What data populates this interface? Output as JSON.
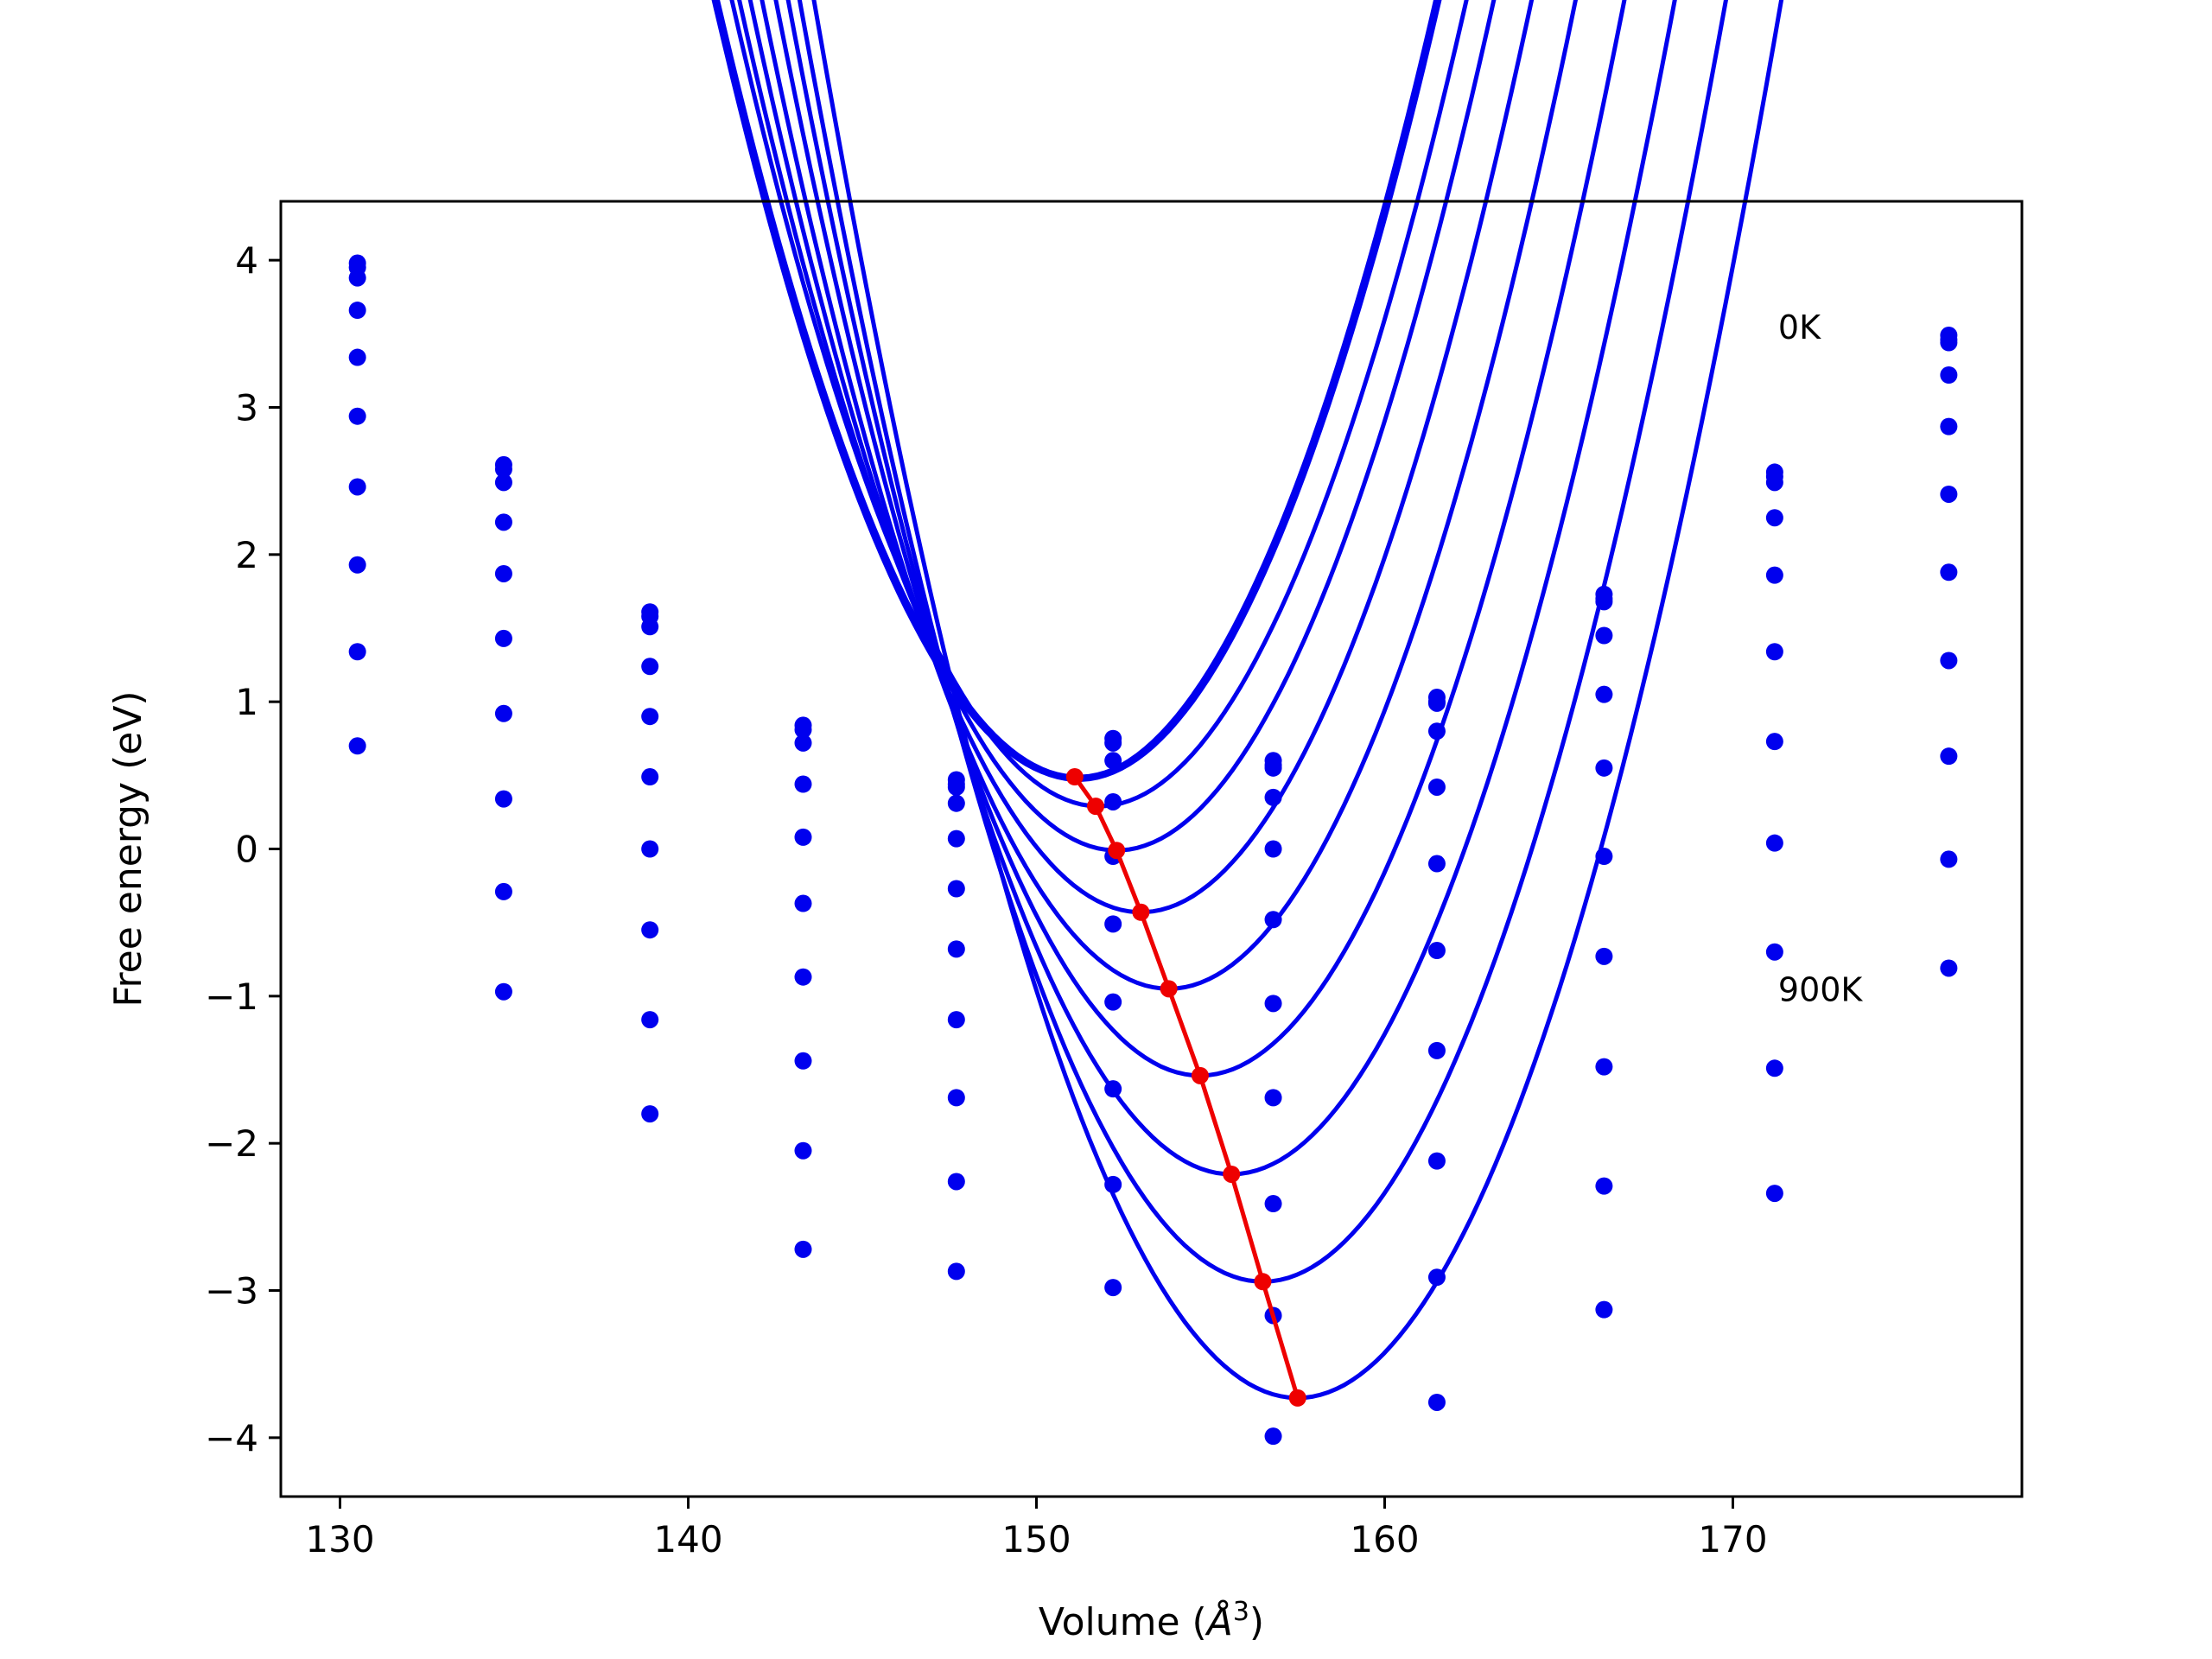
{
  "chart_data": {
    "type": "scatter",
    "title": "",
    "xlabel": "Volume (",
    "xlabel_symbol": "Å",
    "xlabel_exponent": "3",
    "xlabel_close": ")",
    "ylabel": "Free energy (eV)",
    "xlim": [
      128.3,
      178.3
    ],
    "ylim": [
      -4.4,
      4.4
    ],
    "xticks": [
      130,
      140,
      150,
      160,
      170
    ],
    "xtick_labels": [
      "130",
      "140",
      "150",
      "160",
      "170"
    ],
    "yticks": [
      4,
      3,
      2,
      1,
      0,
      -1,
      -2,
      -3,
      -4
    ],
    "ytick_labels": [
      "4",
      "3",
      "2",
      "1",
      "0",
      "−1",
      "−2",
      "−3",
      "−4"
    ],
    "grid": false,
    "annotations": [
      {
        "text": "0K",
        "x": 171.3,
        "y": 3.55
      },
      {
        "text": "900K",
        "x": 171.3,
        "y": -0.95
      }
    ],
    "colors": {
      "series": "#0000ee",
      "minimum_path": "#ee0000",
      "frame": "#000000"
    },
    "volumes": [
      130.5,
      134.7,
      138.9,
      143.3,
      147.7,
      152.2,
      156.8,
      161.5,
      166.3,
      171.2,
      176.2
    ],
    "series": [
      {
        "values": [
          3.98,
          2.61,
          1.61,
          0.84,
          0.47,
          0.75,
          0.6,
          1.03,
          1.73,
          2.56,
          3.49
        ],
        "fit": {
          "a": 0.004922,
          "v0": 151.2,
          "e0": 0.49
        }
      },
      {
        "values": [
          3.95,
          2.58,
          1.58,
          0.81,
          0.44,
          0.72,
          0.57,
          1.0,
          1.7,
          2.53,
          3.46
        ],
        "fit": {
          "a": 0.004922,
          "v0": 151.1,
          "e0": 0.48
        }
      },
      {
        "values": [
          3.88,
          2.49,
          1.51,
          0.72,
          0.42,
          0.6,
          0.55,
          0.99,
          1.68,
          2.49,
          3.44
        ],
        "fit": {
          "a": 0.004922,
          "v0": 151.2,
          "e0": 0.47
        }
      },
      {
        "values": [
          3.66,
          2.22,
          1.24,
          0.44,
          0.31,
          0.32,
          0.35,
          0.8,
          1.45,
          2.25,
          3.22
        ],
        "fit": {
          "a": 0.004922,
          "v0": 151.8,
          "e0": 0.29
        }
      },
      {
        "values": [
          3.34,
          1.87,
          0.9,
          0.08,
          0.07,
          -0.05,
          0.0,
          0.42,
          1.05,
          1.86,
          2.87
        ],
        "fit": {
          "a": 0.004922,
          "v0": 152.3,
          "e0": -0.01
        }
      },
      {
        "values": [
          2.94,
          1.43,
          0.49,
          -0.37,
          -0.27,
          -0.51,
          -0.48,
          -0.1,
          0.55,
          1.34,
          2.41
        ],
        "fit": {
          "a": 0.004922,
          "v0": 153.0,
          "e0": -0.43
        }
      },
      {
        "values": [
          2.46,
          0.92,
          0.0,
          -0.87,
          -0.68,
          -1.04,
          -1.05,
          -0.69,
          -0.05,
          0.73,
          1.88
        ],
        "fit": {
          "a": 0.004922,
          "v0": 153.8,
          "e0": -0.95
        }
      },
      {
        "values": [
          1.93,
          0.34,
          -0.55,
          -1.44,
          -1.16,
          -1.63,
          -1.69,
          -1.37,
          -0.73,
          0.04,
          1.28
        ],
        "fit": {
          "a": 0.004922,
          "v0": 154.7,
          "e0": -1.54
        }
      },
      {
        "values": [
          1.34,
          -0.29,
          -1.16,
          -2.05,
          -1.69,
          -2.28,
          -2.41,
          -2.12,
          -1.48,
          -0.7,
          0.63
        ],
        "fit": {
          "a": 0.004922,
          "v0": 155.6,
          "e0": -2.21
        }
      },
      {
        "values": [
          0.7,
          -0.97,
          -1.8,
          -2.72,
          -2.26,
          -2.98,
          -3.17,
          -2.91,
          -2.29,
          -1.49,
          -0.07
        ],
        "fit": {
          "a": 0.004922,
          "v0": 156.5,
          "e0": -2.94
        }
      },
      {
        "values": [
          null,
          null,
          null,
          null,
          -2.87,
          null,
          -3.99,
          -3.76,
          -3.13,
          -2.34,
          -0.81
        ],
        "fit": {
          "a": 0.004922,
          "v0": 157.5,
          "e0": -3.73
        }
      }
    ],
    "minimum_path": {
      "x": [
        151.1,
        151.7,
        152.3,
        153.0,
        153.8,
        154.7,
        155.6,
        156.5,
        157.5
      ],
      "y": [
        0.49,
        0.29,
        -0.01,
        -0.43,
        -0.95,
        -1.54,
        -2.21,
        -2.94,
        -3.73
      ]
    }
  }
}
